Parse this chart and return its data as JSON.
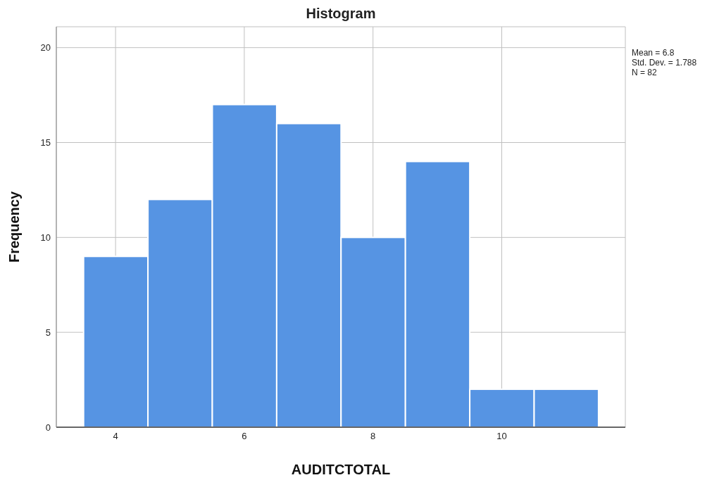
{
  "chart_data": {
    "type": "histogram",
    "title": "Histogram",
    "xlabel": "AUDITCTOTAL",
    "ylabel": "Frequency",
    "bins": [
      3.5,
      4.5,
      5.5,
      6.5,
      7.5,
      8.5,
      9.5,
      10.5,
      11.5
    ],
    "values": [
      9,
      12,
      17,
      16,
      10,
      14,
      2,
      2
    ],
    "color": "#5694e3",
    "xlim": [
      3.08,
      11.92
    ],
    "xticks": [
      4,
      6,
      8,
      10
    ],
    "ylim": [
      0,
      21.1
    ],
    "yticks": [
      0,
      5,
      10,
      15,
      20
    ],
    "grid": true,
    "annotations": [
      "Mean = 6.8",
      "Std. Dev. = 1.788",
      "N = 82"
    ]
  }
}
